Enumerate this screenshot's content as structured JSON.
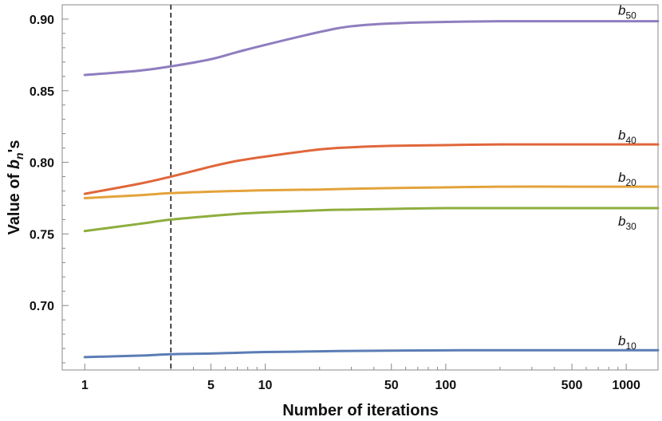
{
  "chart_data": {
    "type": "line",
    "xlabel": "Number of iterations",
    "ylabel_parts": {
      "pre": "Value of ",
      "var": "b",
      "sub": "n",
      "post": "'s"
    },
    "x_scale": "log",
    "xlim": [
      0.75,
      1500
    ],
    "ylim": [
      0.655,
      0.91
    ],
    "x_ticks": [
      1,
      5,
      10,
      50,
      100,
      500,
      1000
    ],
    "x_tick_labels": [
      "1",
      "5",
      "10",
      "50",
      "100",
      "500",
      "1000"
    ],
    "y_ticks": [
      0.7,
      0.75,
      0.8,
      0.85,
      0.9
    ],
    "y_tick_labels": [
      "0.70",
      "0.75",
      "0.80",
      "0.85",
      "0.90"
    ],
    "vertical_line_x": 3,
    "grid": false,
    "x": [
      1,
      2,
      3,
      5,
      7,
      10,
      20,
      30,
      50,
      100,
      200,
      500,
      1000,
      1500
    ],
    "series": [
      {
        "label_var": "b",
        "label_sub": "50",
        "color": "#8F7DBF",
        "values": [
          0.861,
          0.864,
          0.867,
          0.872,
          0.877,
          0.882,
          0.891,
          0.895,
          0.897,
          0.898,
          0.8985,
          0.8985,
          0.8985,
          0.8985
        ]
      },
      {
        "label_var": "b",
        "label_sub": "40",
        "color": "#E0663A",
        "values": [
          0.778,
          0.785,
          0.79,
          0.797,
          0.801,
          0.804,
          0.809,
          0.8105,
          0.8115,
          0.812,
          0.8125,
          0.8125,
          0.8125,
          0.8125
        ]
      },
      {
        "label_var": "b",
        "label_sub": "20",
        "color": "#E3A33A",
        "values": [
          0.775,
          0.777,
          0.7785,
          0.7795,
          0.78,
          0.7805,
          0.781,
          0.7815,
          0.782,
          0.7825,
          0.783,
          0.783,
          0.783,
          0.783
        ]
      },
      {
        "label_var": "b",
        "label_sub": "30",
        "color": "#8EAE3E",
        "values": [
          0.752,
          0.757,
          0.76,
          0.7625,
          0.764,
          0.765,
          0.7665,
          0.767,
          0.7675,
          0.768,
          0.768,
          0.768,
          0.768,
          0.768
        ]
      },
      {
        "label_var": "b",
        "label_sub": "10",
        "color": "#5B7DB5",
        "values": [
          0.664,
          0.665,
          0.666,
          0.6665,
          0.667,
          0.6675,
          0.668,
          0.6683,
          0.6685,
          0.6687,
          0.6688,
          0.6688,
          0.6688,
          0.6688
        ]
      }
    ]
  }
}
